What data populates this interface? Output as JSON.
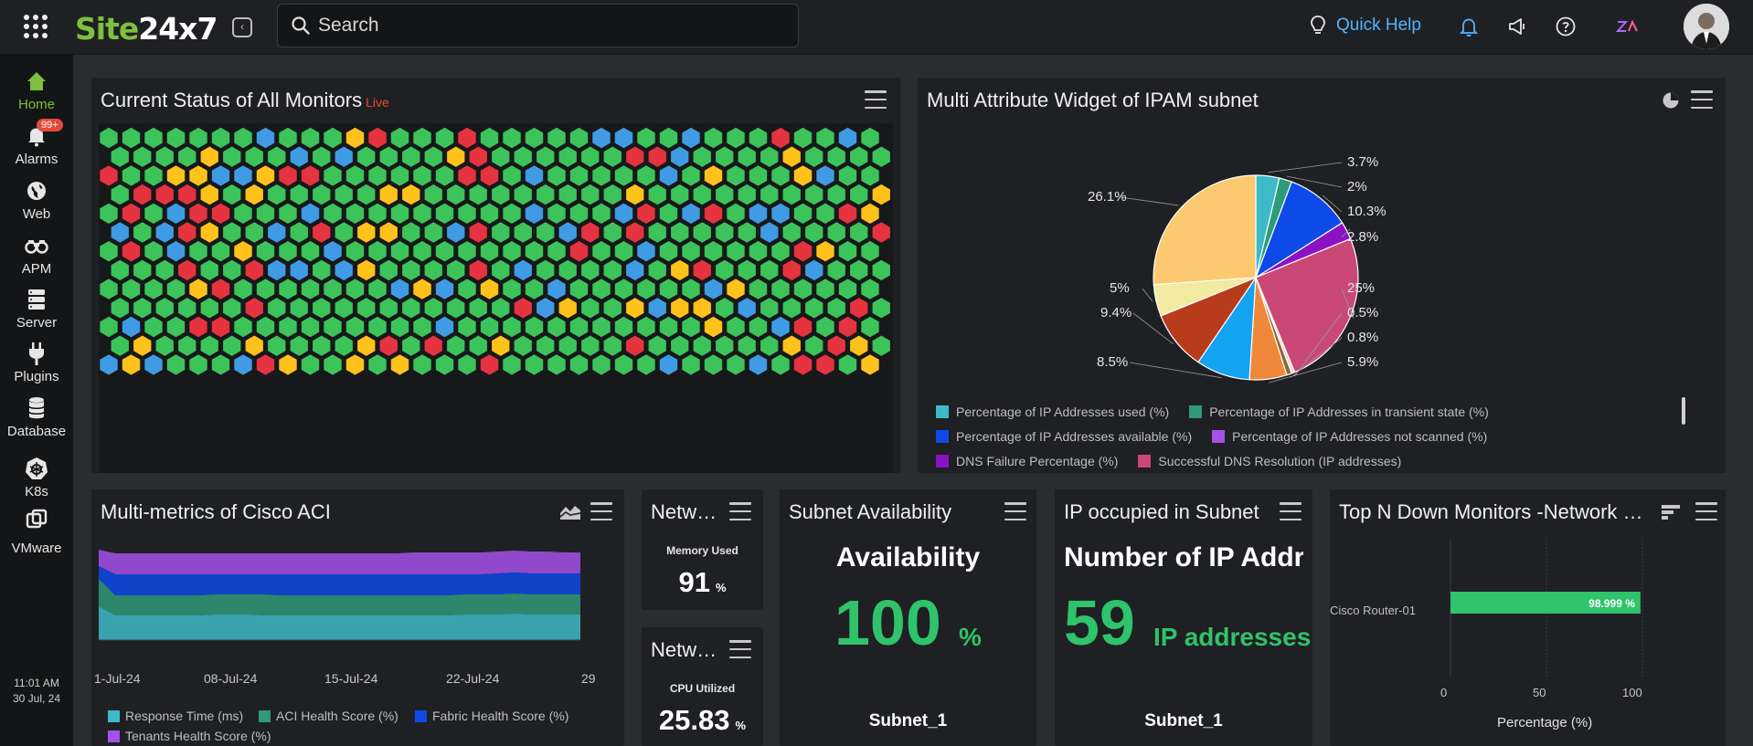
{
  "brand": {
    "logo_part1": "Site",
    "logo_part2": "24x7"
  },
  "search": {
    "placeholder": "Search"
  },
  "header": {
    "quick_help": "Quick Help"
  },
  "sidebar": {
    "items": [
      {
        "label": "Home",
        "icon": "home-icon"
      },
      {
        "label": "Alarms",
        "icon": "bell-icon",
        "badge": "99+"
      },
      {
        "label": "Web",
        "icon": "globe-icon"
      },
      {
        "label": "APM",
        "icon": "binoculars-icon"
      },
      {
        "label": "Server",
        "icon": "server-icon"
      },
      {
        "label": "Plugins",
        "icon": "plug-icon"
      },
      {
        "label": "Database",
        "icon": "database-icon"
      },
      {
        "label": "K8s",
        "icon": "kubernetes-icon"
      },
      {
        "label": "VMware",
        "icon": "vmware-icon"
      }
    ],
    "clock_time": "11:01 AM",
    "clock_date": "30 Jul, 24"
  },
  "status_widget": {
    "title": "Current Status of All Monitors",
    "live": "Live",
    "colors": {
      "up": "#3cc35a",
      "down": "#e5333f",
      "trouble": "#ffc21a",
      "maintenance": "#3f9be3"
    }
  },
  "ipam_widget": {
    "title": "Multi Attribute Widget of IPAM subnet",
    "slices": [
      {
        "pct": "3.7%",
        "color": "#3dbac8"
      },
      {
        "pct": "2%",
        "color": "#2f9a78"
      },
      {
        "pct": "10.3%",
        "color": "#0d4ae8"
      },
      {
        "pct": "2.8%",
        "color": "#8a12c4"
      },
      {
        "pct": "25%",
        "color": "#c94876"
      },
      {
        "pct": "0.5%",
        "color": "#e6d7c6"
      },
      {
        "pct": "0.8%",
        "color": "#8b6a3a"
      },
      {
        "pct": "5.9%",
        "color": "#f0883a"
      },
      {
        "pct": "8.5%",
        "color": "#13a3f0"
      },
      {
        "pct": "9.4%",
        "color": "#b83c1c"
      },
      {
        "pct": "5%",
        "color": "#f2eaa0"
      },
      {
        "pct": "26.1%",
        "color": "#fdc970"
      }
    ],
    "legend": [
      {
        "label": "Percentage of IP Addresses used (%)",
        "color": "#3dbac8"
      },
      {
        "label": "Percentage of IP Addresses in transient state (%)",
        "color": "#2f9a78"
      },
      {
        "label": "Percentage of IP Addresses available (%)",
        "color": "#0d4ae8"
      },
      {
        "label": "Percentage of IP Addresses not scanned (%)",
        "color": "#a451e8"
      },
      {
        "label": "DNS Failure Percentage (%)",
        "color": "#8a12c4"
      },
      {
        "label": "Successful DNS Resolution (IP addresses)",
        "color": "#c94876"
      }
    ]
  },
  "aci_widget": {
    "title": "Multi-metrics of Cisco ACI",
    "x_ticks": [
      "1-Jul-24",
      "08-Jul-24",
      "15-Jul-24",
      "22-Jul-24",
      "29"
    ],
    "legend": [
      {
        "label": "Response Time (ms)",
        "color": "#3dbac8"
      },
      {
        "label": "ACI Health Score (%)",
        "color": "#2f9a78"
      },
      {
        "label": "Fabric Health Score (%)",
        "color": "#0d4ae8"
      },
      {
        "label": "Tenants Health Score (%)",
        "color": "#a451e8"
      }
    ]
  },
  "net_mem": {
    "title": "Netw…",
    "label": "Memory Used",
    "value": "91",
    "unit": "%"
  },
  "net_cpu": {
    "title": "Netw…",
    "label": "CPU Utilized",
    "value": "25.83",
    "unit": "%"
  },
  "subnet_avail": {
    "title": "Subnet Availability",
    "heading": "Availability",
    "value": "100",
    "unit": "%",
    "name": "Subnet_1"
  },
  "ip_occupied": {
    "title": "IP occupied in Subnet",
    "heading": "Number of IP Addres",
    "value": "59",
    "unit": "IP addresses",
    "name": "Subnet_1"
  },
  "topn_widget": {
    "title": "Top N Down Monitors -Network …",
    "monitor": "Cisco Router-01",
    "value_label": "98.999 %",
    "value": 98.999,
    "x_ticks": [
      "0",
      "50",
      "100"
    ],
    "xlabel": "Percentage (%)"
  }
}
